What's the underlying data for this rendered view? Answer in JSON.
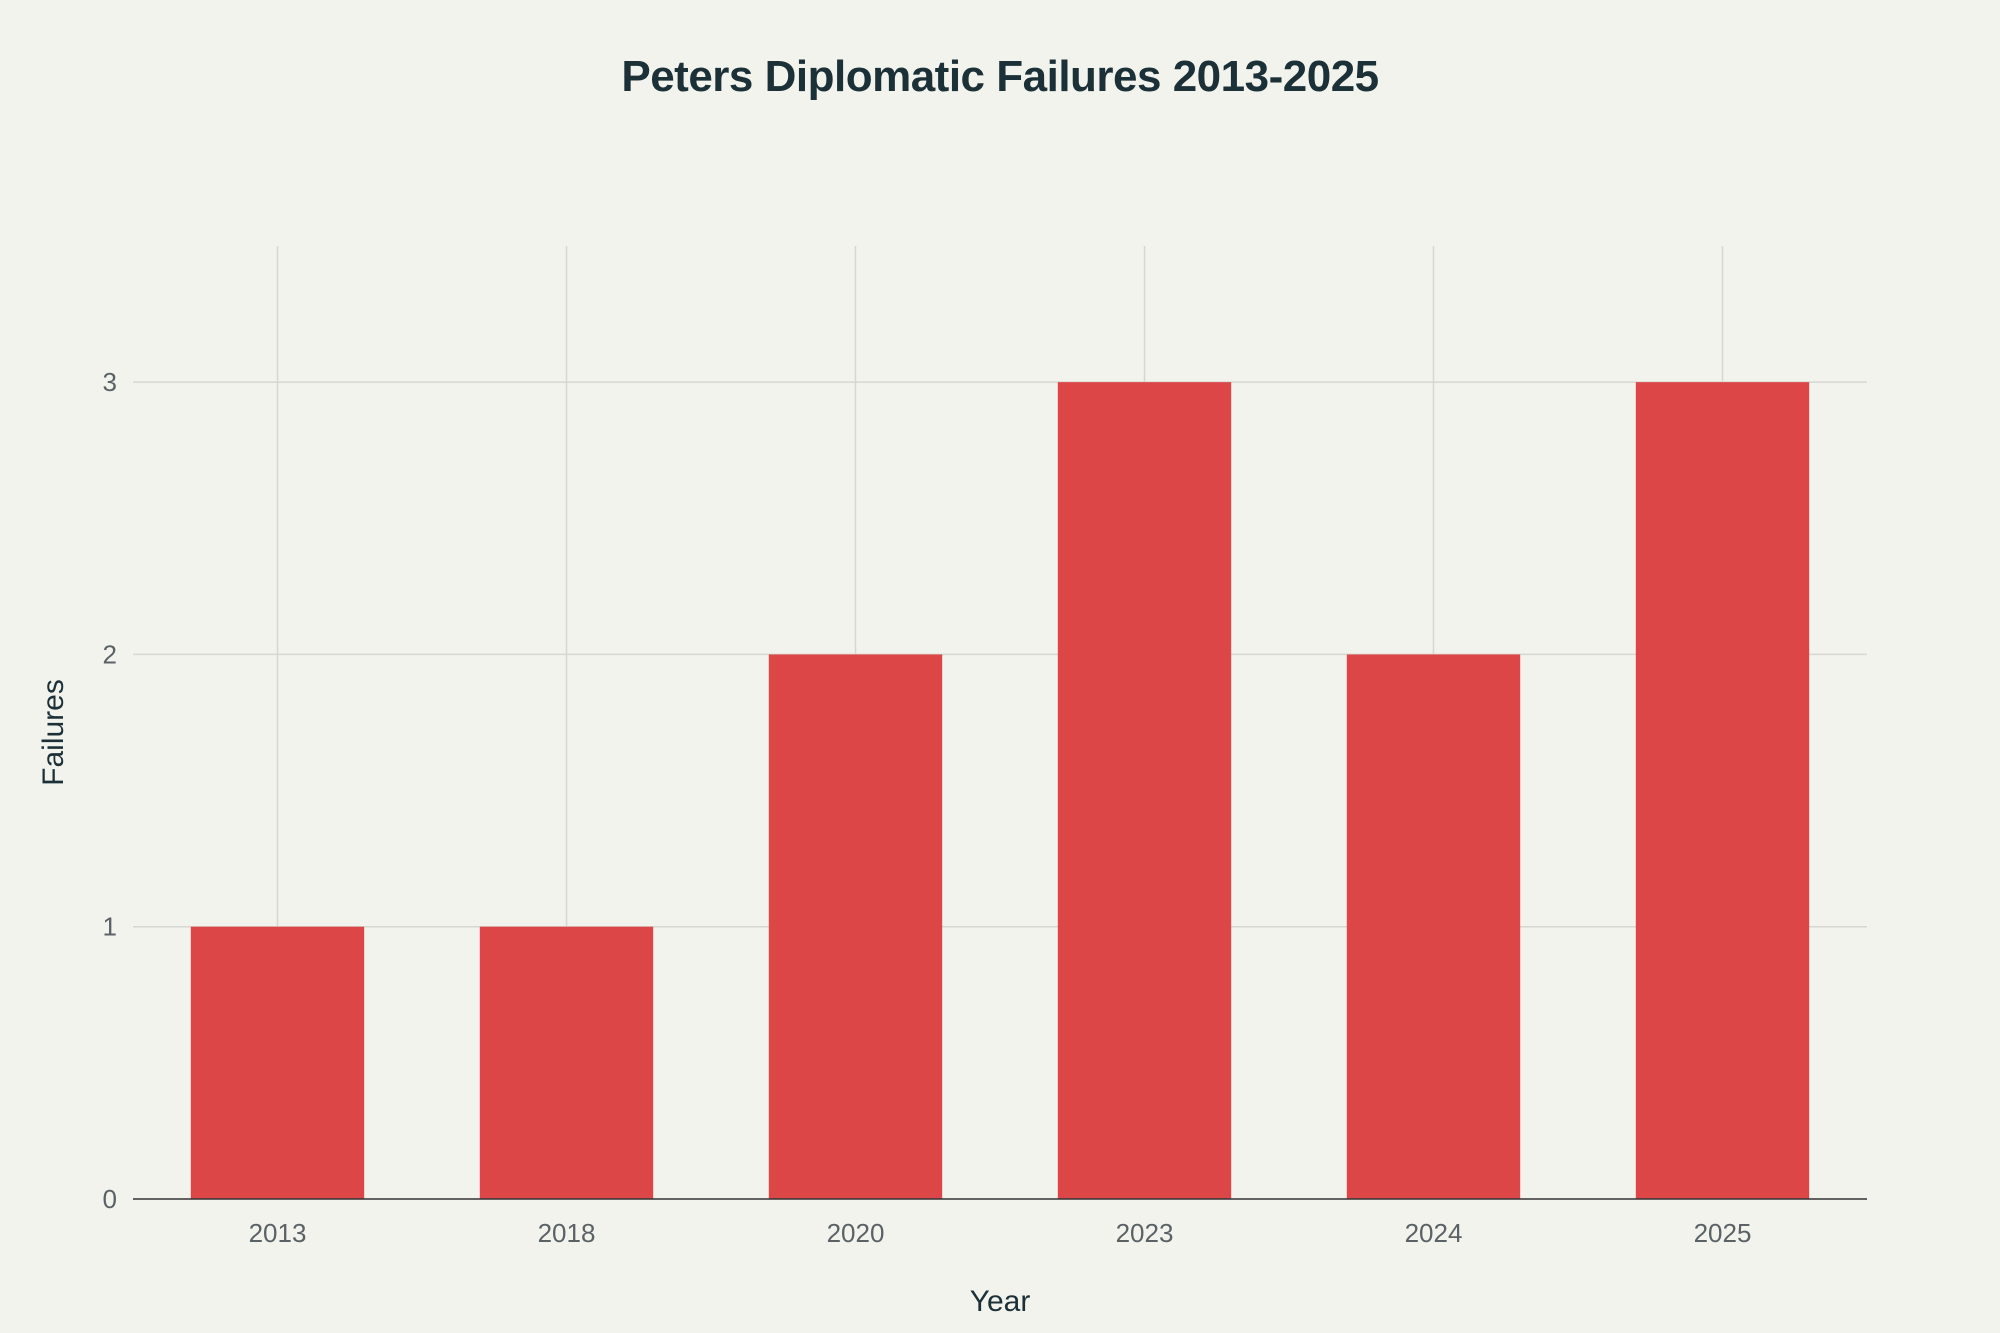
{
  "chart_data": {
    "type": "bar",
    "title": "Peters Diplomatic Failures 2013-2025",
    "xlabel": "Year",
    "ylabel": "Failures",
    "categories": [
      "2013",
      "2018",
      "2020",
      "2023",
      "2024",
      "2025"
    ],
    "values": [
      1,
      1,
      2,
      3,
      2,
      3
    ],
    "ylim": [
      0,
      3.5
    ],
    "yticks": [
      0,
      1,
      2,
      3
    ],
    "grid": true,
    "bar_color": "#dc4646",
    "grid_color": "#d6d6d2",
    "axis_color": "#333333",
    "background": "#f3f3ee"
  }
}
